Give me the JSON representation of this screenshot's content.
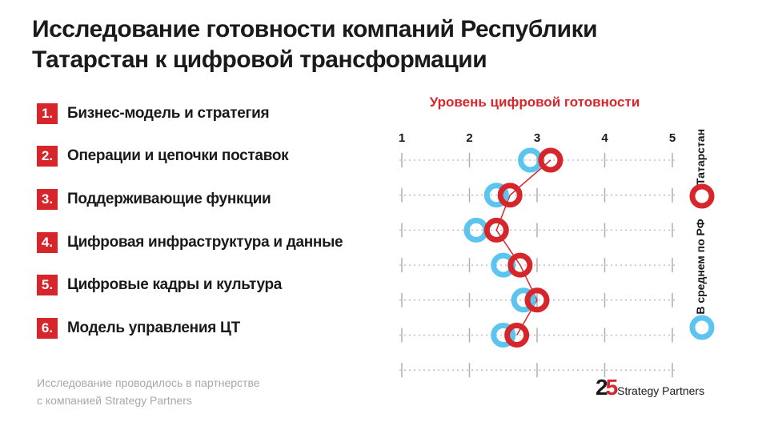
{
  "title": {
    "line1": "Исследование готовности компаний Республики",
    "line2": "Татарстан к  цифровой трансформации"
  },
  "items": [
    {
      "num": "1.",
      "label": "Бизнес-модель и стратегия"
    },
    {
      "num": "2.",
      "label": "Операции и цепочки поставок"
    },
    {
      "num": "3.",
      "label": "Поддерживающие функции"
    },
    {
      "num": "4.",
      "label": "Цифровая инфраструктура и данные"
    },
    {
      "num": "5.",
      "label": "Цифровые кадры и культура"
    },
    {
      "num": "6.",
      "label": "Модель управления ЦТ"
    }
  ],
  "footer": {
    "line1": "Исследование проводилось в партнерстве",
    "line2": "с компанией Strategy Partners"
  },
  "logo": {
    "num_a": "2",
    "num_b": "5",
    "text": "Strategy Partners"
  },
  "colors": {
    "accent": "#d7262b",
    "average": "#5bc5f0",
    "text": "#1a1a1a"
  },
  "chart_data": {
    "type": "scatter",
    "title": "Уровень цифровой готовности",
    "xlim": [
      1,
      5
    ],
    "x_ticks": [
      "1",
      "2",
      "3",
      "4",
      "5"
    ],
    "rows": 7,
    "grid": true,
    "legend_placement": "right",
    "series": [
      {
        "name": "В среднем по РФ",
        "color": "#5bc5f0",
        "x": [
          2.9,
          2.4,
          2.1,
          2.5,
          2.8,
          2.5
        ],
        "row": [
          0,
          1,
          2,
          3,
          4,
          5
        ]
      },
      {
        "name": "Татарстан",
        "color": "#d7262b",
        "x": [
          3.2,
          2.6,
          2.4,
          2.75,
          3.0,
          2.7
        ],
        "row": [
          0,
          1,
          2,
          3,
          4,
          5
        ]
      }
    ]
  }
}
